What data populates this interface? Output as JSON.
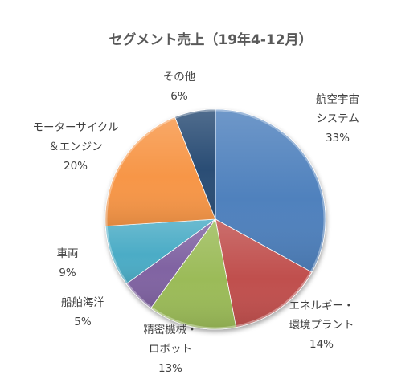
{
  "chart_data": {
    "type": "pie",
    "title": "セグメント売上（19年4-12月）",
    "slices": [
      {
        "label_lines": [
          "航空宇宙",
          "システム"
        ],
        "percent_label": "33%",
        "value": 33,
        "color": "#4f81bd"
      },
      {
        "label_lines": [
          "エネルギー・",
          "環境プラント"
        ],
        "percent_label": "14%",
        "value": 14,
        "color": "#c0504d"
      },
      {
        "label_lines": [
          "精密機械・",
          "ロボット"
        ],
        "percent_label": "13%",
        "value": 13,
        "color": "#9bbb59"
      },
      {
        "label_lines": [
          "船舶海洋"
        ],
        "percent_label": "5%",
        "value": 5,
        "color": "#8064a2"
      },
      {
        "label_lines": [
          "車両"
        ],
        "percent_label": "9%",
        "value": 9,
        "color": "#4bacc6"
      },
      {
        "label_lines": [
          "モーターサイクル",
          "＆エンジン"
        ],
        "percent_label": "20%",
        "value": 20,
        "color": "#f79646"
      },
      {
        "label_lines": [
          "その他"
        ],
        "percent_label": "6%",
        "value": 6,
        "color": "#2c4d75"
      }
    ],
    "start_angle_deg": 0,
    "direction": "clockwise",
    "legend": "none"
  }
}
